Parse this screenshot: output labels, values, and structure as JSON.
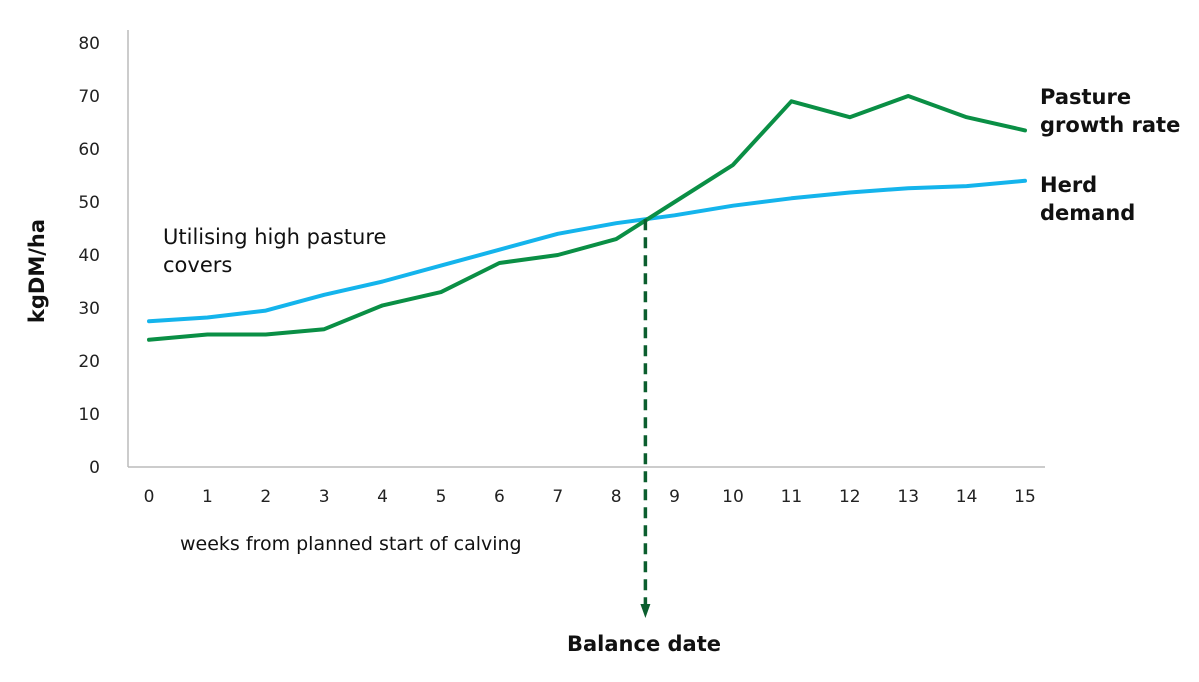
{
  "chart_data": {
    "type": "line",
    "x": [
      0,
      1,
      2,
      3,
      4,
      5,
      6,
      7,
      8,
      9,
      10,
      11,
      12,
      13,
      14,
      15
    ],
    "x_tick_labels": [
      "0",
      "1",
      "2",
      "3",
      "4",
      "5",
      "6",
      "7",
      "8",
      "9",
      "10",
      "11",
      "12",
      "13",
      "14",
      "15"
    ],
    "ylabel": "kgDM/ha",
    "xlabel": "weeks from planned start of calving",
    "ylim": [
      0,
      80
    ],
    "y_ticks": [
      0,
      10,
      20,
      30,
      40,
      50,
      60,
      70,
      80
    ],
    "y_tick_labels": [
      "0",
      "10",
      "20",
      "30",
      "40",
      "50",
      "60",
      "70",
      "80"
    ],
    "grid": false,
    "series": [
      {
        "name_lines": [
          "Pasture",
          "growth rate"
        ],
        "color": "#0a8f45",
        "values": [
          24,
          25,
          25,
          26,
          30.5,
          33,
          38.5,
          40,
          43,
          50,
          57,
          69,
          66,
          70,
          66,
          63.5
        ]
      },
      {
        "name_lines": [
          "Herd",
          "demand"
        ],
        "color": "#14b4ec",
        "values": [
          27.5,
          28.2,
          29.5,
          32.5,
          35,
          38,
          41,
          44,
          46,
          47.5,
          49.3,
          50.7,
          51.8,
          52.6,
          53,
          54
        ]
      }
    ],
    "annotations": [
      {
        "text_lines": [
          "Utilising high pasture",
          "covers"
        ]
      }
    ],
    "balance_date": {
      "label": "Balance date",
      "x": 8.5,
      "color": "#0b5e2e"
    }
  }
}
